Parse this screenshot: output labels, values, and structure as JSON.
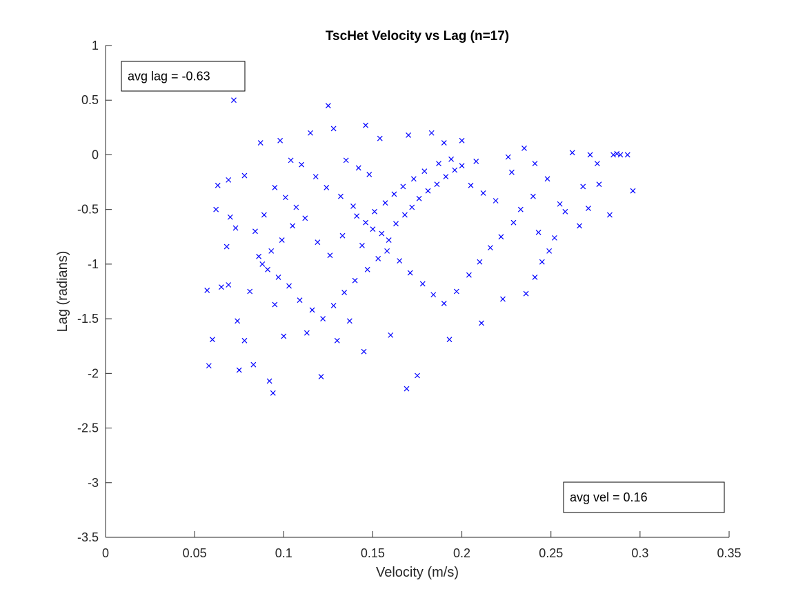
{
  "chart_data": {
    "type": "scatter",
    "title": "TscHet Velocity vs Lag (n=17)",
    "xlabel": "Velocity (m/s)",
    "ylabel": "Lag (radians)",
    "xlim": [
      0,
      0.35
    ],
    "ylim": [
      -3.5,
      1
    ],
    "xticks": [
      "0",
      "0.05",
      "0.1",
      "0.15",
      "0.2",
      "0.25",
      "0.3",
      "0.35"
    ],
    "yticks": [
      "1",
      "0.5",
      "0",
      "-0.5",
      "-1",
      "-1.5",
      "-2",
      "-2.5",
      "-3",
      "-3.5"
    ],
    "grid": false,
    "marker": "x",
    "marker_color": "#0000ff",
    "series": [
      {
        "points": [
          [
            0.072,
            0.5
          ],
          [
            0.125,
            0.45
          ],
          [
            0.146,
            0.27
          ],
          [
            0.128,
            0.24
          ],
          [
            0.115,
            0.2
          ],
          [
            0.183,
            0.2
          ],
          [
            0.17,
            0.18
          ],
          [
            0.098,
            0.13
          ],
          [
            0.087,
            0.11
          ],
          [
            0.2,
            0.13
          ],
          [
            0.154,
            0.15
          ],
          [
            0.19,
            0.11
          ],
          [
            0.235,
            0.06
          ],
          [
            0.287,
            0.01
          ],
          [
            0.289,
            0.0
          ],
          [
            0.293,
            0.0
          ],
          [
            0.262,
            0.02
          ],
          [
            0.272,
            0.0
          ],
          [
            0.285,
            0.0
          ],
          [
            0.276,
            -0.08
          ],
          [
            0.296,
            -0.33
          ],
          [
            0.268,
            -0.29
          ],
          [
            0.277,
            -0.27
          ],
          [
            0.283,
            -0.55
          ],
          [
            0.271,
            -0.49
          ],
          [
            0.258,
            -0.52
          ],
          [
            0.266,
            -0.65
          ],
          [
            0.255,
            -0.45
          ],
          [
            0.078,
            -0.19
          ],
          [
            0.069,
            -0.23
          ],
          [
            0.063,
            -0.28
          ],
          [
            0.062,
            -0.5
          ],
          [
            0.07,
            -0.57
          ],
          [
            0.073,
            -0.67
          ],
          [
            0.068,
            -0.84
          ],
          [
            0.057,
            -1.24
          ],
          [
            0.065,
            -1.21
          ],
          [
            0.069,
            -1.19
          ],
          [
            0.074,
            -1.52
          ],
          [
            0.06,
            -1.69
          ],
          [
            0.078,
            -1.7
          ],
          [
            0.058,
            -1.93
          ],
          [
            0.075,
            -1.97
          ],
          [
            0.083,
            -1.92
          ],
          [
            0.094,
            -2.18
          ],
          [
            0.092,
            -2.07
          ],
          [
            0.121,
            -2.03
          ],
          [
            0.175,
            -2.02
          ],
          [
            0.169,
            -2.14
          ],
          [
            0.145,
            -1.8
          ],
          [
            0.13,
            -1.7
          ],
          [
            0.1,
            -1.66
          ],
          [
            0.113,
            -1.63
          ],
          [
            0.137,
            -1.52
          ],
          [
            0.16,
            -1.65
          ],
          [
            0.193,
            -1.69
          ],
          [
            0.211,
            -1.54
          ],
          [
            0.223,
            -1.32
          ],
          [
            0.241,
            -1.12
          ],
          [
            0.236,
            -1.27
          ],
          [
            0.245,
            -0.98
          ],
          [
            0.249,
            -0.88
          ],
          [
            0.252,
            -0.76
          ],
          [
            0.243,
            -0.71
          ],
          [
            0.24,
            -0.38
          ],
          [
            0.248,
            -0.22
          ],
          [
            0.228,
            -0.16
          ],
          [
            0.241,
            -0.08
          ],
          [
            0.226,
            -0.02
          ],
          [
            0.208,
            -0.06
          ],
          [
            0.104,
            -0.05
          ],
          [
            0.11,
            -0.09
          ],
          [
            0.118,
            -0.2
          ],
          [
            0.124,
            -0.3
          ],
          [
            0.132,
            -0.38
          ],
          [
            0.139,
            -0.47
          ],
          [
            0.141,
            -0.56
          ],
          [
            0.146,
            -0.62
          ],
          [
            0.15,
            -0.68
          ],
          [
            0.155,
            -0.72
          ],
          [
            0.159,
            -0.78
          ],
          [
            0.163,
            -0.63
          ],
          [
            0.168,
            -0.55
          ],
          [
            0.172,
            -0.48
          ],
          [
            0.176,
            -0.4
          ],
          [
            0.181,
            -0.33
          ],
          [
            0.186,
            -0.27
          ],
          [
            0.191,
            -0.2
          ],
          [
            0.196,
            -0.14
          ],
          [
            0.2,
            -0.1
          ],
          [
            0.105,
            -0.65
          ],
          [
            0.099,
            -0.78
          ],
          [
            0.093,
            -0.88
          ],
          [
            0.088,
            -1.0
          ],
          [
            0.097,
            -1.12
          ],
          [
            0.103,
            -1.2
          ],
          [
            0.109,
            -1.33
          ],
          [
            0.116,
            -1.42
          ],
          [
            0.122,
            -1.5
          ],
          [
            0.128,
            -1.38
          ],
          [
            0.134,
            -1.26
          ],
          [
            0.14,
            -1.15
          ],
          [
            0.147,
            -1.05
          ],
          [
            0.153,
            -0.95
          ],
          [
            0.158,
            -0.88
          ],
          [
            0.165,
            -0.97
          ],
          [
            0.171,
            -1.08
          ],
          [
            0.178,
            -1.18
          ],
          [
            0.184,
            -1.28
          ],
          [
            0.19,
            -1.36
          ],
          [
            0.197,
            -1.25
          ],
          [
            0.204,
            -1.1
          ],
          [
            0.21,
            -0.98
          ],
          [
            0.216,
            -0.85
          ],
          [
            0.222,
            -0.75
          ],
          [
            0.229,
            -0.62
          ],
          [
            0.233,
            -0.5
          ],
          [
            0.219,
            -0.42
          ],
          [
            0.212,
            -0.35
          ],
          [
            0.205,
            -0.28
          ],
          [
            0.119,
            -0.8
          ],
          [
            0.126,
            -0.92
          ],
          [
            0.133,
            -0.74
          ],
          [
            0.144,
            -0.83
          ],
          [
            0.151,
            -0.52
          ],
          [
            0.157,
            -0.44
          ],
          [
            0.162,
            -0.36
          ],
          [
            0.167,
            -0.29
          ],
          [
            0.173,
            -0.22
          ],
          [
            0.179,
            -0.15
          ],
          [
            0.187,
            -0.08
          ],
          [
            0.194,
            -0.04
          ],
          [
            0.135,
            -0.05
          ],
          [
            0.142,
            -0.12
          ],
          [
            0.148,
            -0.18
          ],
          [
            0.112,
            -0.58
          ],
          [
            0.107,
            -0.48
          ],
          [
            0.101,
            -0.39
          ],
          [
            0.095,
            -0.3
          ],
          [
            0.089,
            -0.55
          ],
          [
            0.084,
            -0.7
          ],
          [
            0.086,
            -0.93
          ],
          [
            0.091,
            -1.05
          ],
          [
            0.081,
            -1.25
          ],
          [
            0.095,
            -1.37
          ]
        ]
      }
    ],
    "annotations": [
      {
        "text": "avg lag = -0.63"
      },
      {
        "text": "avg vel = 0.16"
      }
    ]
  }
}
